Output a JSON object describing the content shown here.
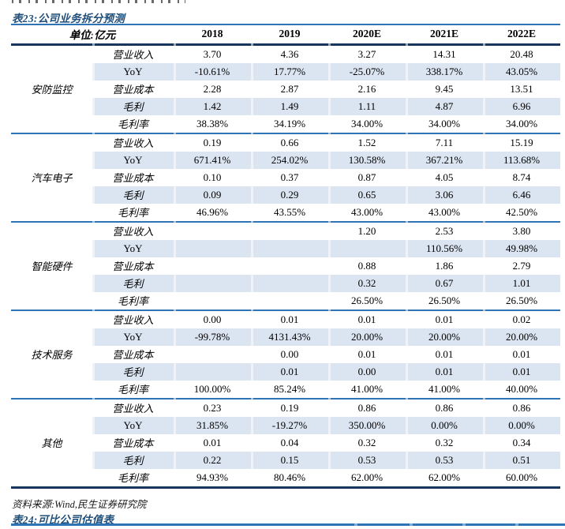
{
  "table23": {
    "title": "表23:公司业务拆分预测",
    "unit_header": "单位:亿元",
    "years": [
      "2018",
      "2019",
      "2020E",
      "2021E",
      "2022E"
    ],
    "metrics": [
      "营业收入",
      "YoY",
      "营业成本",
      "毛利",
      "毛利率"
    ],
    "groups": [
      {
        "name": "安防监控",
        "rows": [
          [
            "3.70",
            "4.36",
            "3.27",
            "14.31",
            "20.48"
          ],
          [
            "-10.61%",
            "17.77%",
            "-25.07%",
            "338.17%",
            "43.05%"
          ],
          [
            "2.28",
            "2.87",
            "2.16",
            "9.45",
            "13.51"
          ],
          [
            "1.42",
            "1.49",
            "1.11",
            "4.87",
            "6.96"
          ],
          [
            "38.38%",
            "34.19%",
            "34.00%",
            "34.00%",
            "34.00%"
          ]
        ]
      },
      {
        "name": "汽车电子",
        "rows": [
          [
            "0.19",
            "0.66",
            "1.52",
            "7.11",
            "15.19"
          ],
          [
            "671.41%",
            "254.02%",
            "130.58%",
            "367.21%",
            "113.68%"
          ],
          [
            "0.10",
            "0.37",
            "0.87",
            "4.05",
            "8.74"
          ],
          [
            "0.09",
            "0.29",
            "0.65",
            "3.06",
            "6.46"
          ],
          [
            "46.96%",
            "43.55%",
            "43.00%",
            "43.00%",
            "42.50%"
          ]
        ]
      },
      {
        "name": "智能硬件",
        "rows": [
          [
            "",
            "",
            "1.20",
            "2.53",
            "3.80"
          ],
          [
            "",
            "",
            "",
            "110.56%",
            "49.98%"
          ],
          [
            "",
            "",
            "0.88",
            "1.86",
            "2.79"
          ],
          [
            "",
            "",
            "0.32",
            "0.67",
            "1.01"
          ],
          [
            "",
            "",
            "26.50%",
            "26.50%",
            "26.50%"
          ]
        ]
      },
      {
        "name": "技术服务",
        "rows": [
          [
            "0.00",
            "0.01",
            "0.01",
            "0.01",
            "0.02"
          ],
          [
            "-99.78%",
            "4131.43%",
            "20.00%",
            "20.00%",
            "20.00%"
          ],
          [
            "",
            "0.00",
            "0.01",
            "0.01",
            "0.01"
          ],
          [
            "",
            "0.01",
            "0.00",
            "0.01",
            "0.01"
          ],
          [
            "100.00%",
            "85.24%",
            "41.00%",
            "41.00%",
            "40.00%"
          ]
        ]
      },
      {
        "name": "其他",
        "rows": [
          [
            "0.23",
            "0.19",
            "0.86",
            "0.86",
            "0.86"
          ],
          [
            "31.85%",
            "-19.27%",
            "350.00%",
            "0.00%",
            "0.00%"
          ],
          [
            "0.01",
            "0.04",
            "0.32",
            "0.32",
            "0.34"
          ],
          [
            "0.22",
            "0.15",
            "0.53",
            "0.53",
            "0.51"
          ],
          [
            "94.93%",
            "80.46%",
            "62.00%",
            "62.00%",
            "60.00%"
          ]
        ]
      }
    ],
    "source": "资料来源:Wind,民生证券研究院"
  },
  "table24": {
    "title": "表24:可比公司估值表"
  },
  "colors": {
    "accent_dark": "#17365d",
    "accent_mid": "#2e74b5",
    "row_shade": "#dbe5f1",
    "title_blue": "#1f4e79"
  }
}
